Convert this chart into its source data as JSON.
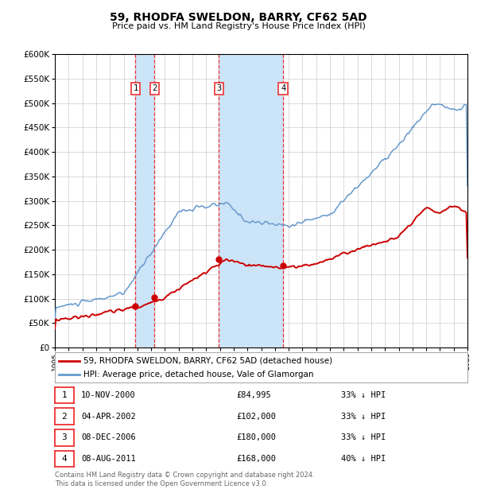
{
  "title": "59, RHODFA SWELDON, BARRY, CF62 5AD",
  "subtitle": "Price paid vs. HM Land Registry's House Price Index (HPI)",
  "red_label": "59, RHODFA SWELDON, BARRY, CF62 5AD (detached house)",
  "blue_label": "HPI: Average price, detached house, Vale of Glamorgan",
  "footer": "Contains HM Land Registry data © Crown copyright and database right 2024.\nThis data is licensed under the Open Government Licence v3.0.",
  "ylim": [
    0,
    600000
  ],
  "yticks": [
    0,
    50000,
    100000,
    150000,
    200000,
    250000,
    300000,
    350000,
    400000,
    450000,
    500000,
    550000,
    600000
  ],
  "ytick_labels": [
    "£0",
    "£50K",
    "£100K",
    "£150K",
    "£200K",
    "£250K",
    "£300K",
    "£350K",
    "£400K",
    "£450K",
    "£500K",
    "£550K",
    "£600K"
  ],
  "background_color": "#ffffff",
  "grid_color": "#cccccc",
  "transactions": [
    {
      "num": 1,
      "date": "10-NOV-2000",
      "price": 84995,
      "pct": "33%",
      "year": 2000.86
    },
    {
      "num": 2,
      "date": "04-APR-2002",
      "price": 102000,
      "pct": "33%",
      "year": 2002.25
    },
    {
      "num": 3,
      "date": "08-DEC-2006",
      "price": 180000,
      "pct": "33%",
      "year": 2006.93
    },
    {
      "num": 4,
      "date": "08-AUG-2011",
      "price": 168000,
      "pct": "40%",
      "year": 2011.6
    }
  ],
  "shade_color": "#cce4f7",
  "dashed_color": "#ee3333",
  "red_line_color": "#cc0000",
  "blue_line_color": "#6699cc",
  "table_rows": [
    [
      "1",
      "10-NOV-2000",
      "£84,995",
      "33% ↓ HPI"
    ],
    [
      "2",
      "04-APR-2002",
      "£102,000",
      "33% ↓ HPI"
    ],
    [
      "3",
      "08-DEC-2006",
      "£180,000",
      "33% ↓ HPI"
    ],
    [
      "4",
      "08-AUG-2011",
      "£168,000",
      "40% ↓ HPI"
    ]
  ]
}
